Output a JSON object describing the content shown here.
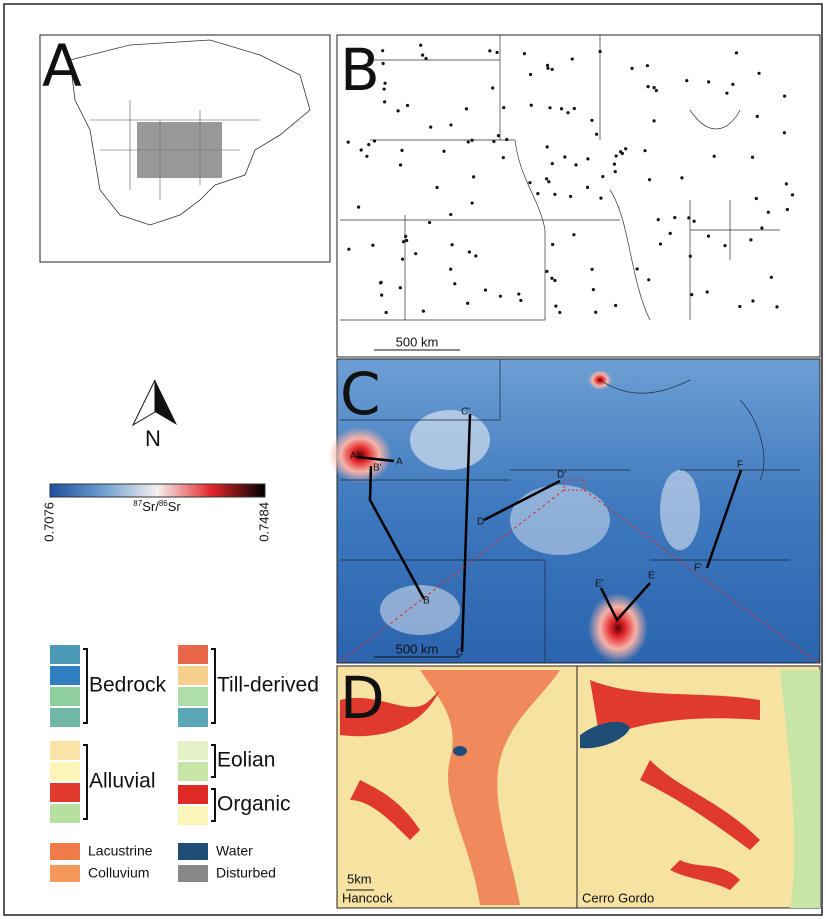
{
  "panels": {
    "a": "A",
    "b": "B",
    "c": "C",
    "d": "D"
  },
  "scale_bars": {
    "b": "500 km",
    "c": "500 km",
    "d": "5km"
  },
  "north": "N",
  "colorbar": {
    "min": 0.7076,
    "max": 0.7484,
    "colors": [
      "#1f4f9e",
      "#6f9fd0",
      "#f4f1f1",
      "#e3262a",
      "#000000"
    ],
    "label": {
      "iso1": "87",
      "el1": "Sr/",
      "iso2": "86",
      "el2": "Sr"
    }
  },
  "transects": [
    {
      "start": "A'",
      "end": "A"
    },
    {
      "start": "B'",
      "end": "B"
    },
    {
      "start": "C'",
      "end": "C"
    },
    {
      "start": "D'",
      "end": "D"
    },
    {
      "start": "E'",
      "end": "E"
    },
    {
      "start": "F",
      "end": "F'"
    }
  ],
  "legend": {
    "groups": [
      {
        "name": "Bedrock",
        "colors": [
          "#4a9ab8",
          "#2f7fc1",
          "#8fcf9e",
          "#6fb8a6"
        ]
      },
      {
        "name": "Till-derived",
        "colors": [
          "#e8664a",
          "#f6d08a",
          "#aedfa8",
          "#5aa7b5"
        ]
      },
      {
        "name": "Alluvial",
        "colors": [
          "#fbe3a8",
          "#fdf5b8",
          "#e03a2f",
          "#b7e0a0"
        ]
      },
      {
        "name": "Eolian",
        "colors": [
          "#e6f3c8",
          "#c7e6a6"
        ]
      },
      {
        "name": "Organic",
        "colors": [
          "#e02a25",
          "#fbf6b8"
        ]
      }
    ],
    "singles": [
      {
        "name": "Lacustrine",
        "color": "#f07a4a"
      },
      {
        "name": "Colluvium",
        "color": "#f59a5a"
      },
      {
        "name": "Water",
        "color": "#1e4e78"
      },
      {
        "name": "Disturbed",
        "color": "#888888"
      }
    ]
  },
  "counties": [
    "Hancock",
    "Cerro Gordo"
  ]
}
